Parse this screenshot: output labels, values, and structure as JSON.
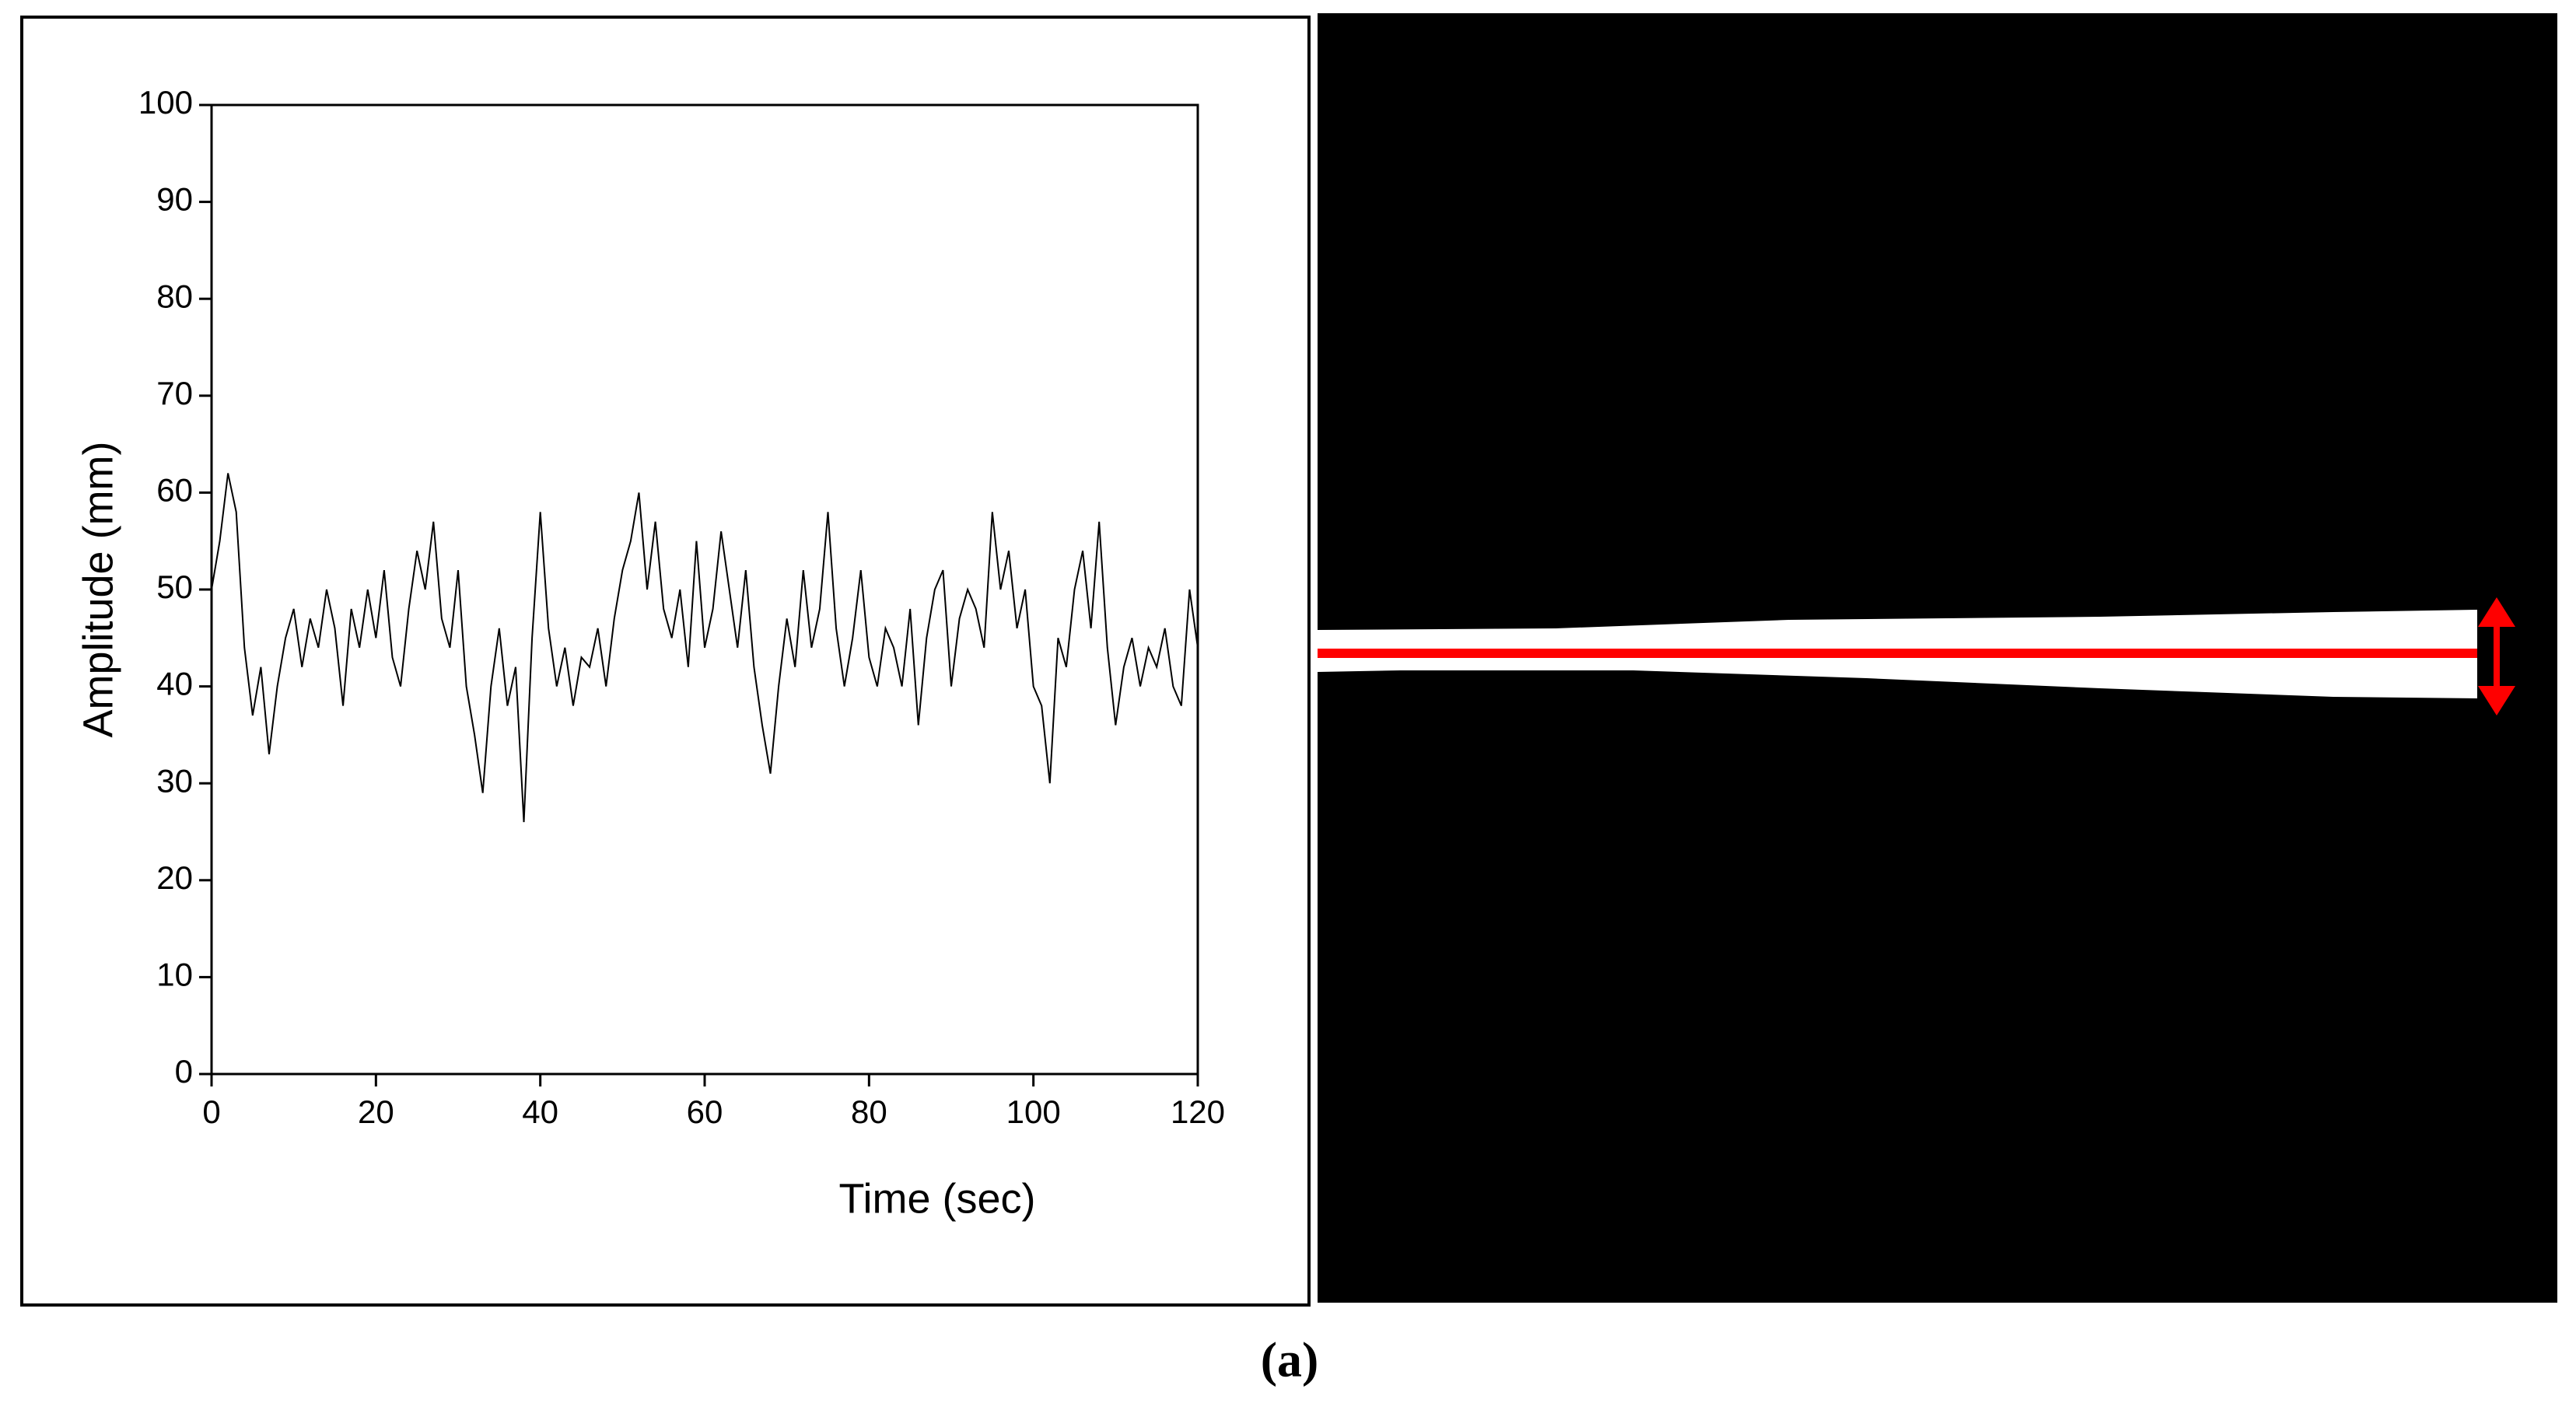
{
  "chart_data": {
    "type": "line",
    "xlabel": "Time (sec)",
    "ylabel": "Amplitude (mm)",
    "caption": "(a)",
    "x": [
      0,
      1,
      2,
      3,
      4,
      5,
      6,
      7,
      8,
      9,
      10,
      11,
      12,
      13,
      14,
      15,
      16,
      17,
      18,
      19,
      20,
      21,
      22,
      23,
      24,
      25,
      26,
      27,
      28,
      29,
      30,
      31,
      32,
      33,
      34,
      35,
      36,
      37,
      38,
      39,
      40,
      41,
      42,
      43,
      44,
      45,
      46,
      47,
      48,
      49,
      50,
      51,
      52,
      53,
      54,
      55,
      56,
      57,
      58,
      59,
      60,
      61,
      62,
      63,
      64,
      65,
      66,
      67,
      68,
      69,
      70,
      71,
      72,
      73,
      74,
      75,
      76,
      77,
      78,
      79,
      80,
      81,
      82,
      83,
      84,
      85,
      86,
      87,
      88,
      89,
      90,
      91,
      92,
      93,
      94,
      95,
      96,
      97,
      98,
      99,
      100,
      101,
      102,
      103,
      104,
      105,
      106,
      107,
      108,
      109,
      110,
      111,
      112,
      113,
      114,
      115,
      116,
      117,
      118,
      119,
      120
    ],
    "series": [
      {
        "color": "#000000",
        "values": [
          50,
          55,
          62,
          58,
          44,
          37,
          42,
          33,
          40,
          45,
          48,
          42,
          47,
          44,
          50,
          46,
          38,
          48,
          44,
          50,
          45,
          52,
          43,
          40,
          48,
          54,
          50,
          57,
          47,
          44,
          52,
          40,
          35,
          29,
          40,
          46,
          38,
          42,
          26,
          45,
          58,
          46,
          40,
          44,
          38,
          43,
          42,
          46,
          40,
          47,
          52,
          55,
          60,
          50,
          57,
          48,
          45,
          50,
          42,
          55,
          44,
          48,
          56,
          50,
          44,
          52,
          42,
          36,
          31,
          40,
          47,
          42,
          52,
          44,
          48,
          58,
          46,
          40,
          45,
          52,
          43,
          40,
          46,
          44,
          40,
          48,
          36,
          45,
          50,
          52,
          40,
          47,
          50,
          48,
          44,
          58,
          50,
          54,
          46,
          50,
          40,
          38,
          30,
          45,
          42,
          50,
          54,
          46,
          57,
          44,
          36,
          42,
          45,
          40,
          44,
          42,
          46,
          40,
          38,
          50,
          44
        ]
      }
    ],
    "xlim": [
      0,
      120
    ],
    "xticks": [
      0,
      20,
      40,
      60,
      80,
      100,
      120
    ],
    "ylim": [
      0,
      100
    ],
    "yticks": [
      0,
      10,
      20,
      30,
      40,
      50,
      60,
      70,
      80,
      90,
      100
    ]
  }
}
